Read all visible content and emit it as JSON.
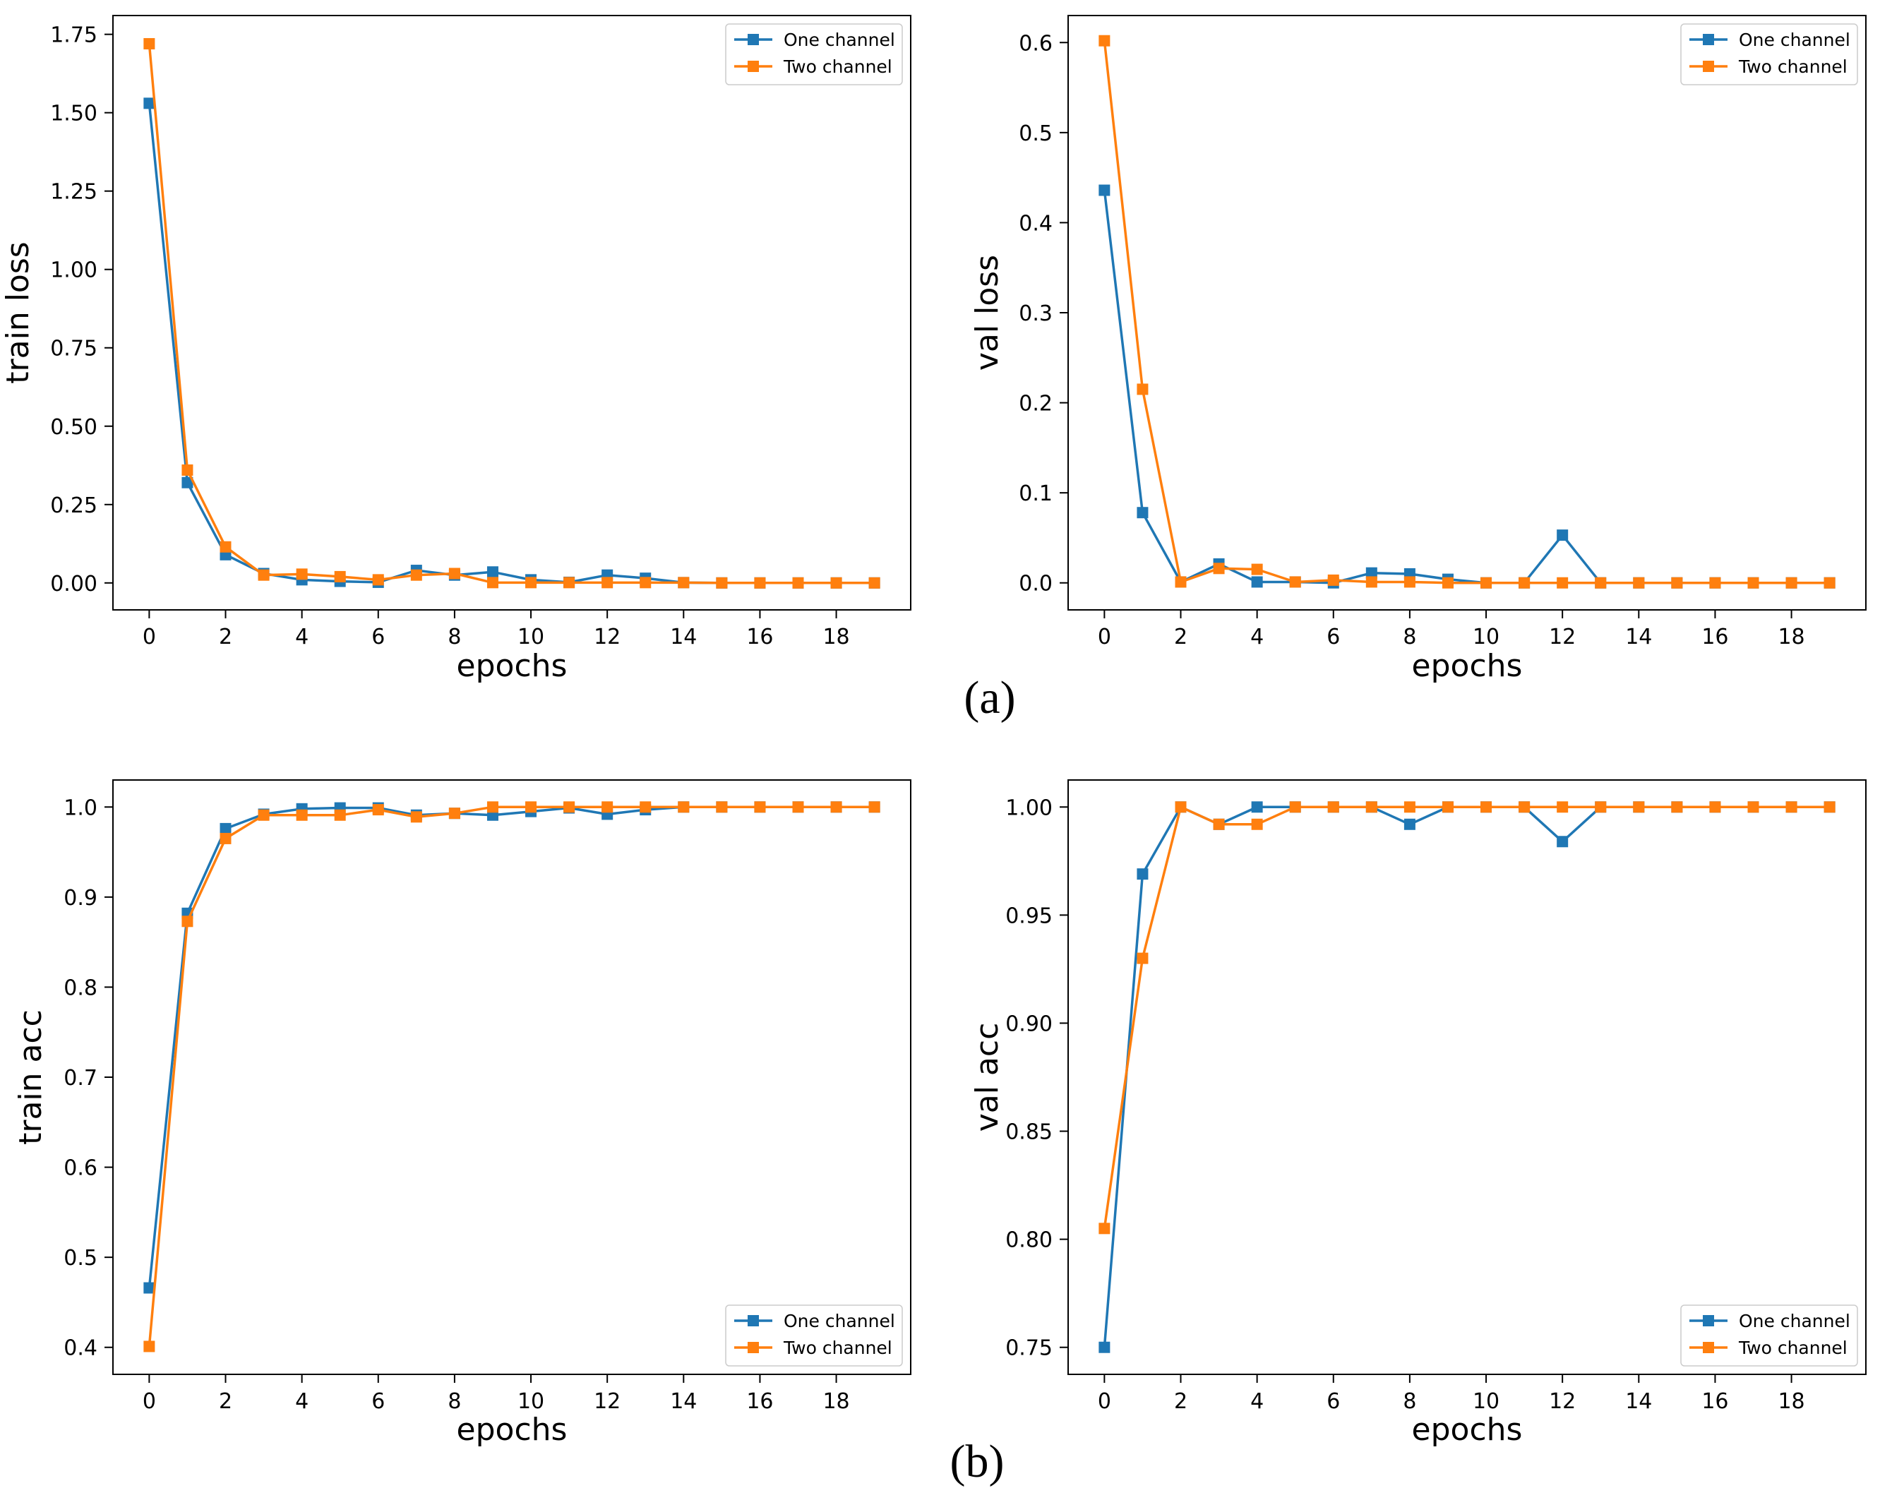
{
  "figure": {
    "label_a": "(a)",
    "label_b": "(b)",
    "colors": {
      "one": "#1f77b4",
      "two": "#ff7f0e"
    }
  },
  "chart_data": [
    {
      "id": "train-loss",
      "type": "line",
      "xlabel": "epochs",
      "ylabel": "train loss",
      "xlim": [
        -0.95,
        19.95
      ],
      "ylim": [
        -0.086,
        1.81
      ],
      "xticks": [
        0,
        2,
        4,
        6,
        8,
        10,
        12,
        14,
        16,
        18
      ],
      "xtick_labels": [
        "0",
        "2",
        "4",
        "6",
        "8",
        "10",
        "12",
        "14",
        "16",
        "18"
      ],
      "yticks": [
        0,
        0.25,
        0.5,
        0.75,
        1.0,
        1.25,
        1.5,
        1.75
      ],
      "ytick_labels": [
        "0.00",
        "0.25",
        "0.50",
        "0.75",
        "1.00",
        "1.25",
        "1.50",
        "1.75"
      ],
      "legend_position": "top-right",
      "x": [
        0,
        1,
        2,
        3,
        4,
        5,
        6,
        7,
        8,
        9,
        10,
        11,
        12,
        13,
        14,
        15,
        16,
        17,
        18,
        19
      ],
      "series": [
        {
          "name": "One channel",
          "color": "#1f77b4",
          "values": [
            1.53,
            0.32,
            0.09,
            0.03,
            0.01,
            0.005,
            0.002,
            0.04,
            0.025,
            0.035,
            0.01,
            0.002,
            0.025,
            0.015,
            0.001,
            0,
            0,
            0,
            0,
            0
          ]
        },
        {
          "name": "Two channel",
          "color": "#ff7f0e",
          "values": [
            1.72,
            0.36,
            0.115,
            0.025,
            0.028,
            0.02,
            0.01,
            0.025,
            0.03,
            0.001,
            0.001,
            0.001,
            0.001,
            0.001,
            0.001,
            0,
            0,
            0,
            0,
            0
          ]
        }
      ]
    },
    {
      "id": "val-loss",
      "type": "line",
      "xlabel": "epochs",
      "ylabel": "val loss",
      "xlim": [
        -0.95,
        19.95
      ],
      "ylim": [
        -0.03,
        0.63
      ],
      "xticks": [
        0,
        2,
        4,
        6,
        8,
        10,
        12,
        14,
        16,
        18
      ],
      "xtick_labels": [
        "0",
        "2",
        "4",
        "6",
        "8",
        "10",
        "12",
        "14",
        "16",
        "18"
      ],
      "yticks": [
        0,
        0.1,
        0.2,
        0.3,
        0.4,
        0.5,
        0.6
      ],
      "ytick_labels": [
        "0.0",
        "0.1",
        "0.2",
        "0.3",
        "0.4",
        "0.5",
        "0.6"
      ],
      "legend_position": "top-right",
      "x": [
        0,
        1,
        2,
        3,
        4,
        5,
        6,
        7,
        8,
        9,
        10,
        11,
        12,
        13,
        14,
        15,
        16,
        17,
        18,
        19
      ],
      "series": [
        {
          "name": "One channel",
          "color": "#1f77b4",
          "values": [
            0.436,
            0.078,
            0.001,
            0.021,
            0.001,
            0.001,
            0.0,
            0.011,
            0.01,
            0.004,
            0.0,
            0.0,
            0.053,
            0.0,
            0,
            0,
            0,
            0,
            0,
            0
          ]
        },
        {
          "name": "Two channel",
          "color": "#ff7f0e",
          "values": [
            0.602,
            0.215,
            0.001,
            0.016,
            0.015,
            0.001,
            0.003,
            0.001,
            0.001,
            0.0,
            0.0,
            0.0,
            0.0,
            0.0,
            0,
            0,
            0,
            0,
            0,
            0
          ]
        }
      ]
    },
    {
      "id": "train-acc",
      "type": "line",
      "xlabel": "epochs",
      "ylabel": "train acc",
      "xlim": [
        -0.95,
        19.95
      ],
      "ylim": [
        0.37,
        1.03
      ],
      "xticks": [
        0,
        2,
        4,
        6,
        8,
        10,
        12,
        14,
        16,
        18
      ],
      "xtick_labels": [
        "0",
        "2",
        "4",
        "6",
        "8",
        "10",
        "12",
        "14",
        "16",
        "18"
      ],
      "yticks": [
        0.4,
        0.5,
        0.6,
        0.7,
        0.8,
        0.9,
        1.0
      ],
      "ytick_labels": [
        "0.4",
        "0.5",
        "0.6",
        "0.7",
        "0.8",
        "0.9",
        "1.0"
      ],
      "legend_position": "bottom-right",
      "x": [
        0,
        1,
        2,
        3,
        4,
        5,
        6,
        7,
        8,
        9,
        10,
        11,
        12,
        13,
        14,
        15,
        16,
        17,
        18,
        19
      ],
      "series": [
        {
          "name": "One channel",
          "color": "#1f77b4",
          "values": [
            0.466,
            0.882,
            0.976,
            0.992,
            0.998,
            0.999,
            0.999,
            0.991,
            0.993,
            0.991,
            0.995,
            0.999,
            0.992,
            0.997,
            1.0,
            1.0,
            1.0,
            1.0,
            1.0,
            1.0
          ]
        },
        {
          "name": "Two channel",
          "color": "#ff7f0e",
          "values": [
            0.401,
            0.873,
            0.965,
            0.991,
            0.991,
            0.991,
            0.997,
            0.989,
            0.993,
            1.0,
            1.0,
            1.0,
            1.0,
            1.0,
            1.0,
            1.0,
            1.0,
            1.0,
            1.0,
            1.0
          ]
        }
      ]
    },
    {
      "id": "val-acc",
      "type": "line",
      "xlabel": "epochs",
      "ylabel": "val acc",
      "xlim": [
        -0.95,
        19.95
      ],
      "ylim": [
        0.7375,
        1.0125
      ],
      "xticks": [
        0,
        2,
        4,
        6,
        8,
        10,
        12,
        14,
        16,
        18
      ],
      "xtick_labels": [
        "0",
        "2",
        "4",
        "6",
        "8",
        "10",
        "12",
        "14",
        "16",
        "18"
      ],
      "yticks": [
        0.75,
        0.8,
        0.85,
        0.9,
        0.95,
        1.0
      ],
      "ytick_labels": [
        "0.75",
        "0.80",
        "0.85",
        "0.90",
        "0.95",
        "1.00"
      ],
      "legend_position": "bottom-right",
      "x": [
        0,
        1,
        2,
        3,
        4,
        5,
        6,
        7,
        8,
        9,
        10,
        11,
        12,
        13,
        14,
        15,
        16,
        17,
        18,
        19
      ],
      "series": [
        {
          "name": "One channel",
          "color": "#1f77b4",
          "values": [
            0.75,
            0.969,
            1.0,
            0.992,
            1.0,
            1.0,
            1.0,
            1.0,
            0.992,
            1.0,
            1.0,
            1.0,
            0.984,
            1.0,
            1.0,
            1.0,
            1.0,
            1.0,
            1.0,
            1.0
          ]
        },
        {
          "name": "Two channel",
          "color": "#ff7f0e",
          "values": [
            0.805,
            0.93,
            1.0,
            0.992,
            0.992,
            1.0,
            1.0,
            1.0,
            1.0,
            1.0,
            1.0,
            1.0,
            1.0,
            1.0,
            1.0,
            1.0,
            1.0,
            1.0,
            1.0,
            1.0
          ]
        }
      ]
    }
  ]
}
